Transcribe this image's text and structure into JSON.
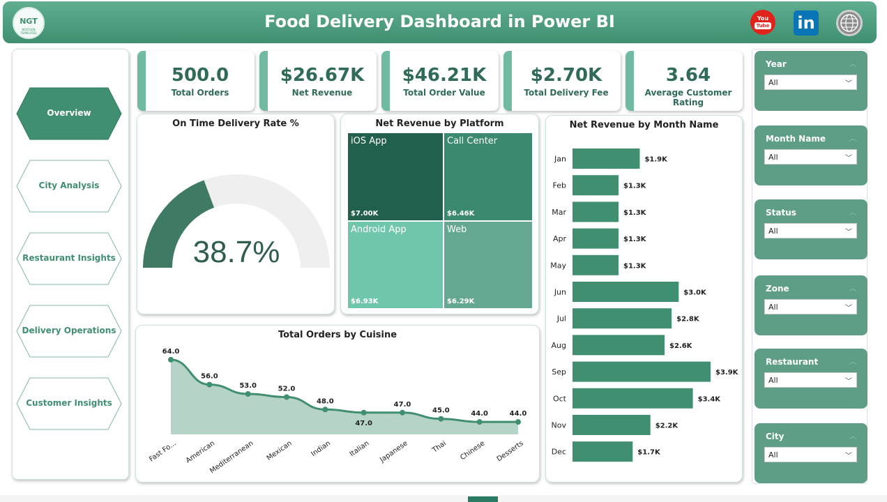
{
  "header": {
    "title": "Food Delivery Dashboard in Power BI",
    "logo_text": "NGT",
    "logo_subtext": "NEXTGEN TEMPLATES",
    "icons": [
      "youtube-icon",
      "linkedin-icon",
      "globe-icon"
    ],
    "youtube_text_top": "You",
    "youtube_text_bottom": "Tube",
    "linkedin_text": "in"
  },
  "nav": {
    "items": [
      {
        "label": "Overview",
        "active": true
      },
      {
        "label": "City Analysis",
        "active": false
      },
      {
        "label": "Restaurant Insights",
        "active": false
      },
      {
        "label": "Delivery Operations",
        "active": false
      },
      {
        "label": "Customer Insights",
        "active": false
      }
    ]
  },
  "kpis": [
    {
      "value": "500.0",
      "label": "Total Orders"
    },
    {
      "value": "$26.67K",
      "label": "Net Revenue"
    },
    {
      "value": "$46.21K",
      "label": "Total Order Value"
    },
    {
      "value": "$2.70K",
      "label": "Total Delivery Fee"
    },
    {
      "value": "3.64",
      "label": "Average Customer Rating"
    }
  ],
  "gauge": {
    "title": "On Time Delivery Rate %",
    "value": 38.7,
    "display": "38.7%",
    "fill_color": "#3f7a64",
    "track_color": "#efefef"
  },
  "treemap": {
    "title": "Net Revenue by Platform",
    "cells": [
      {
        "name": "iOS App",
        "value": "$7.00K",
        "color": "#21604c"
      },
      {
        "name": "Call Center",
        "value": "$6.46K",
        "color": "#3b8a70"
      },
      {
        "name": "Android App",
        "value": "$6.93K",
        "color": "#6fc6aa"
      },
      {
        "name": "Web",
        "value": "$6.29K",
        "color": "#64a891"
      }
    ]
  },
  "chart_data": [
    {
      "type": "area",
      "title": "Total Orders by Cuisine",
      "categories": [
        "Fast Fo...",
        "American",
        "Mediterranean",
        "Mexican",
        "Indian",
        "Italian",
        "Japanese",
        "Thai",
        "Chinese",
        "Desserts"
      ],
      "values": [
        64.0,
        56.0,
        53.0,
        52.0,
        48.0,
        47.0,
        47.0,
        45.0,
        44.0,
        44.0
      ],
      "data_labels": [
        "64.0",
        "56.0",
        "53.0",
        "52.0",
        "48.0",
        "47.0",
        "47.0",
        "45.0",
        "44.0",
        "44.0"
      ],
      "ylim": [
        40,
        66
      ],
      "line_color": "#3f8f70",
      "fill_color": "#b5d3c7",
      "grid": false
    },
    {
      "type": "bar",
      "orientation": "horizontal",
      "title": "Net Revenue by Month Name",
      "categories": [
        "Jan",
        "Feb",
        "Mar",
        "Apr",
        "May",
        "Jun",
        "Jul",
        "Aug",
        "Sep",
        "Oct",
        "Nov",
        "Dec"
      ],
      "values": [
        1.9,
        1.3,
        1.3,
        1.3,
        1.3,
        3.0,
        2.8,
        2.6,
        3.9,
        3.4,
        2.2,
        1.7
      ],
      "data_labels": [
        "$1.9K",
        "$1.3K",
        "$1.3K",
        "$1.3K",
        "$1.3K",
        "$3.0K",
        "$2.8K",
        "$2.6K",
        "$3.9K",
        "$3.4K",
        "$2.2K",
        "$1.7K"
      ],
      "xlim": [
        0,
        3.9
      ],
      "bar_color": "#3f8f70",
      "grid": false
    }
  ],
  "slicers": [
    {
      "label": "Year",
      "value": "All"
    },
    {
      "label": "Month Name",
      "value": "All"
    },
    {
      "label": "Status",
      "value": "All"
    },
    {
      "label": "Zone",
      "value": "All"
    },
    {
      "label": "Restaurant",
      "value": "All"
    },
    {
      "label": "City",
      "value": "All"
    }
  ]
}
